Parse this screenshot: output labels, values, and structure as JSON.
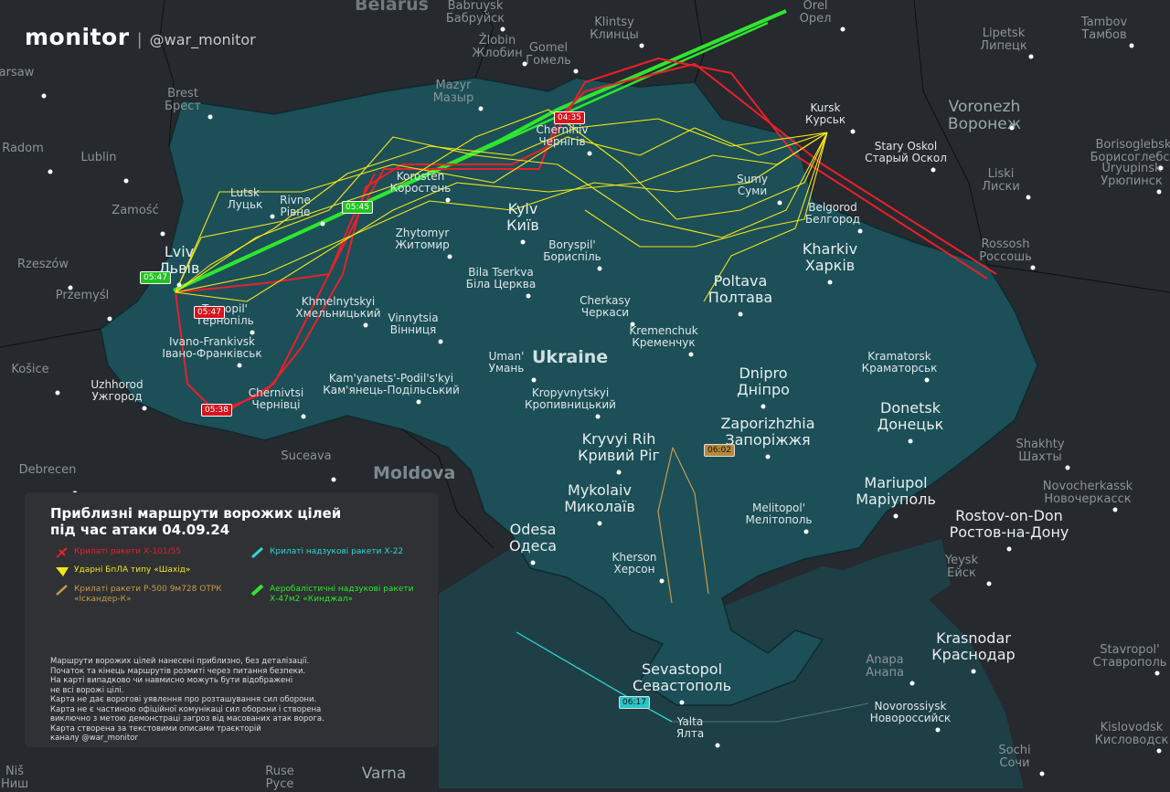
{
  "brand": {
    "logo": "monitor",
    "separator": "|",
    "handle": "@war_monitor"
  },
  "colors": {
    "background": "#26292e",
    "ukraine": "#1c4f57",
    "sea": "#1f3f47",
    "x101": "#e8212b",
    "shahed": "#f2e61a",
    "iskander": "#c99a4a",
    "x22": "#2fd6d6",
    "kinzhal": "#2ee62e"
  },
  "country_labels": [
    "Ukraine",
    "Belarus",
    "Moldova"
  ],
  "cities": [
    {
      "en": "Lviv",
      "uk": "Львів"
    },
    {
      "en": "Lutsk",
      "uk": "Луцьк"
    },
    {
      "en": "Rivne",
      "uk": "Рівне"
    },
    {
      "en": "Ternopil'",
      "uk": "Тернопіль"
    },
    {
      "en": "Khmelnytskyi",
      "uk": "Хмельницький"
    },
    {
      "en": "Ivano-Frankivsk",
      "uk": "Івано-Франківськ"
    },
    {
      "en": "Chernivtsi",
      "uk": "Чернівці"
    },
    {
      "en": "Uzhhorod",
      "uk": "Ужгород"
    },
    {
      "en": "Vinnytsia",
      "uk": "Вінниця"
    },
    {
      "en": "Kam'yanets'-Podil's'kyi",
      "uk": "Кам'янець-Подільський"
    },
    {
      "en": "Zhytomyr",
      "uk": "Житомир"
    },
    {
      "en": "Korosten",
      "uk": "Коростень"
    },
    {
      "en": "Kyiv",
      "uk": "Київ"
    },
    {
      "en": "Boryspil'",
      "uk": "Бориспіль"
    },
    {
      "en": "Bila Tserkva",
      "uk": "Біла Церква"
    },
    {
      "en": "Chernihiv",
      "uk": "Чернігів"
    },
    {
      "en": "Sumy",
      "uk": "Суми"
    },
    {
      "en": "Kharkiv",
      "uk": "Харків"
    },
    {
      "en": "Poltava",
      "uk": "Полтава"
    },
    {
      "en": "Cherkasy",
      "uk": "Черкаси"
    },
    {
      "en": "Kremenchuk",
      "uk": "Кременчук"
    },
    {
      "en": "Uman'",
      "uk": "Умань"
    },
    {
      "en": "Kropyvnytskyi",
      "uk": "Кропивницький"
    },
    {
      "en": "Dnipro",
      "uk": "Дніпро"
    },
    {
      "en": "Kramatorsk",
      "uk": "Краматорськ"
    },
    {
      "en": "Donetsk",
      "uk": "Донецьк"
    },
    {
      "en": "Zaporizhzhia",
      "uk": "Запоріжжя"
    },
    {
      "en": "Kryvyi Rih",
      "uk": "Кривий Ріг"
    },
    {
      "en": "Mykolaiv",
      "uk": "Миколаїв"
    },
    {
      "en": "Odesa",
      "uk": "Одеса"
    },
    {
      "en": "Kherson",
      "uk": "Херсон"
    },
    {
      "en": "Melitopol'",
      "uk": "Мелітополь"
    },
    {
      "en": "Mariupol",
      "uk": "Маріуполь"
    },
    {
      "en": "Sevastopol",
      "uk": "Севастополь"
    },
    {
      "en": "Yalta",
      "uk": "Ялта"
    },
    {
      "en": "Kursk",
      "uk": "Курськ"
    },
    {
      "en": "Belgorod",
      "uk": "Белгород"
    },
    {
      "en": "Voronezh",
      "uk": "Воронеж"
    },
    {
      "en": "Stary Oskol",
      "uk": "Старый Оскол"
    },
    {
      "en": "Rostov-on-Don",
      "uk": "Ростов-на-Дону"
    },
    {
      "en": "Krasnodar",
      "uk": "Краснодар"
    },
    {
      "en": "Novorossiysk",
      "uk": "Новороссийск"
    },
    {
      "en": "Gomel",
      "uk": "Гомель"
    },
    {
      "en": "Mazyr",
      "uk": "Мазыр"
    },
    {
      "en": "Brest",
      "uk": "Брест"
    },
    {
      "en": "Lublin",
      "uk": ""
    },
    {
      "en": "Rzeszów",
      "uk": ""
    },
    {
      "en": "Przemyśl",
      "uk": ""
    },
    {
      "en": "Košice",
      "uk": ""
    },
    {
      "en": "Zamość",
      "uk": ""
    },
    {
      "en": "Radom",
      "uk": ""
    },
    {
      "en": "arsaw",
      "uk": ""
    },
    {
      "en": "Suceava",
      "uk": ""
    },
    {
      "en": "Debrecen",
      "uk": ""
    },
    {
      "en": "Lipetsk",
      "uk": "Липецк"
    },
    {
      "en": "Tambov",
      "uk": "Тамбов"
    },
    {
      "en": "Orel",
      "uk": "Орел"
    },
    {
      "en": "Klintsy",
      "uk": "Клинцы"
    },
    {
      "en": "Žlobin",
      "uk": "Жлобин"
    },
    {
      "en": "Babruysk",
      "uk": "Бабруйск"
    },
    {
      "en": "Liski",
      "uk": "Лиски"
    },
    {
      "en": "Rossosh",
      "uk": "Россошь"
    },
    {
      "en": "Borisoglebsk",
      "uk": "Борисоглебск"
    },
    {
      "en": "Uryupinsk",
      "uk": "Урюпинск"
    },
    {
      "en": "Shakhty",
      "uk": "Шахты"
    },
    {
      "en": "Novocherkassk",
      "uk": "Новочеркасск"
    },
    {
      "en": "Yeysk",
      "uk": "Ейск"
    },
    {
      "en": "Stavropol'",
      "uk": "Ставрополь"
    },
    {
      "en": "Anapa",
      "uk": "Анапа"
    },
    {
      "en": "Sochi",
      "uk": "Сочи"
    },
    {
      "en": "Kislovodsk",
      "uk": "Кисловодск"
    },
    {
      "en": "Ruse",
      "uk": "Русе"
    },
    {
      "en": "Varna",
      "uk": ""
    },
    {
      "en": "Niš",
      "uk": "Ниш"
    }
  ],
  "time_labels": [
    {
      "time": "04:35",
      "type": "x101"
    },
    {
      "time": "05:45",
      "type": "kinzhal"
    },
    {
      "time": "05:47",
      "type": "kinzhal"
    },
    {
      "time": "05:47",
      "type": "x101"
    },
    {
      "time": "05:38",
      "type": "x101"
    },
    {
      "time": "06:02",
      "type": "iskander"
    },
    {
      "time": "06:17",
      "type": "x22"
    }
  ],
  "legend": {
    "title": "Приблизні маршрути ворожих цілей під час атаки 04.09.24",
    "items": [
      {
        "id": "x101",
        "label": "Крилаті ракети Х-101/55",
        "icon": "cruise-missile-icon"
      },
      {
        "id": "x22",
        "label": "Крилаті надзукові ракети Х-22",
        "icon": "supersonic-missile-icon"
      },
      {
        "id": "shahed",
        "label": "Ударні БпЛА типу «Шахід»",
        "icon": "drone-icon"
      },
      {
        "id": "iskander",
        "label": "Крилаті ракети Р-500 9м728 ОТРК «Іскандер-К»",
        "icon": "missile-icon"
      },
      {
        "id": "kinzhal",
        "label": "Аеробалістичні надзукові ракети Х-47м2 «Кинджал»",
        "icon": "ballistic-missile-icon"
      }
    ],
    "disclaimer": "Маршрути ворожих цілей нанесені приблизно, без деталізації.\nПочаток та кінець маршрутів розмиті через питання безпеки.\nНа карті випадково чи навмисно можуть бути відображені\nне всі ворожі цілі.\nКарта не дає ворогові уявлення про розташування сил оборони.\nКарта не є частиною офіційної комунікаці сил оборони і створена\nвиключно з метою демонстраці загроз від масованих атак ворога.\nКарта створена за текстовими описами траєкторій\nканалу @war_monitor"
  }
}
